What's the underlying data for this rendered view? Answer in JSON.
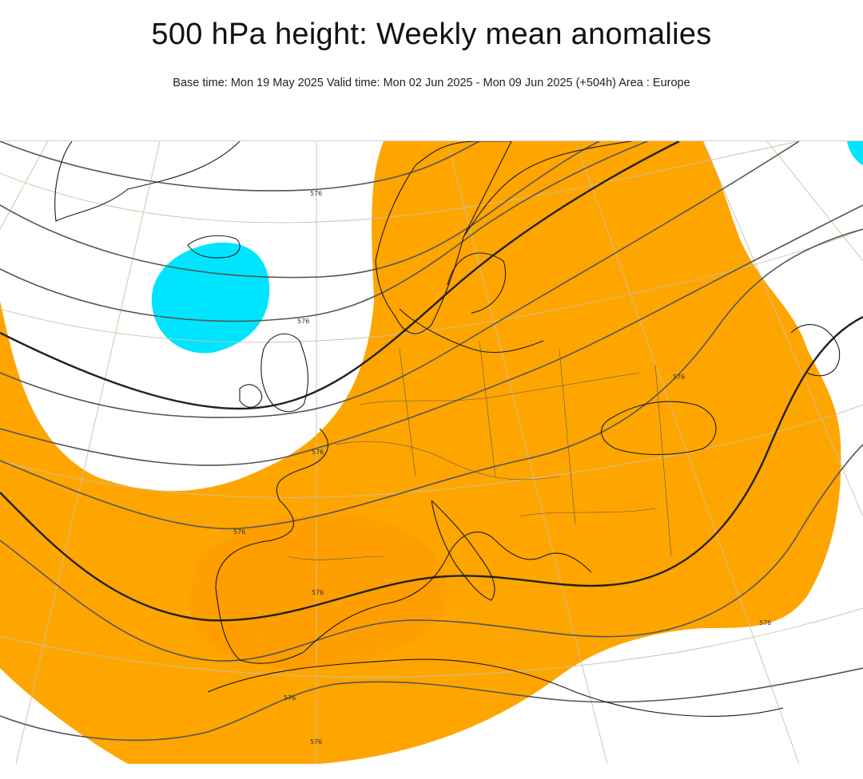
{
  "header": {
    "title": "500 hPa height: Weekly mean anomalies",
    "subtitle": "Base time: Mon 19 May 2025 Valid time: Mon 02 Jun 2025 - Mon 09 Jun 2025 (+504h) Area : Europe"
  },
  "map": {
    "colors": {
      "positive_anomaly": "#ffa500",
      "positive_anomaly_strong": "#ff9a00",
      "negative_anomaly": "#00e5ff",
      "coastline": "#1a1a1a",
      "contour": "#555555",
      "contour_bold": "#222222",
      "graticule": "#c8c2a8"
    },
    "contour_labels": [
      "576",
      "576",
      "576",
      "576",
      "576",
      "576",
      "576",
      "576",
      "576",
      "576"
    ]
  }
}
